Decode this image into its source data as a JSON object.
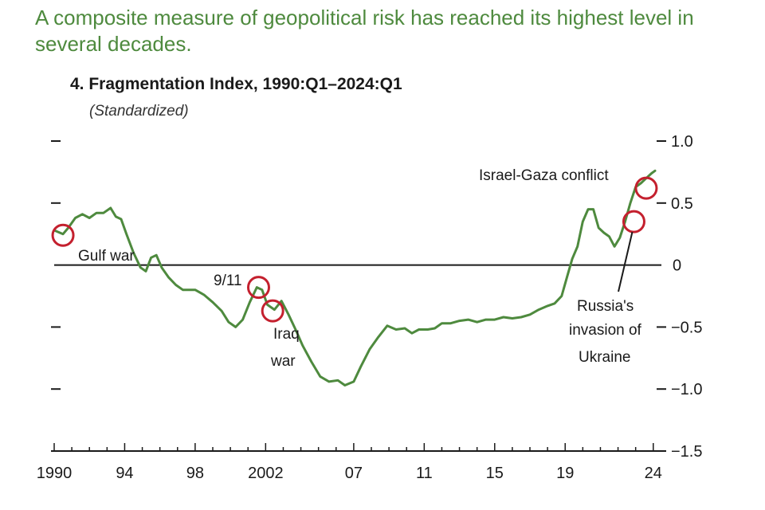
{
  "headline": "A composite measure of geopolitical risk has reached its highest level in several decades.",
  "chart_data": {
    "type": "line",
    "title": "4. Fragmentation Index, 1990:Q1–2024:Q1",
    "subtitle": "(Standardized)",
    "ylim": [
      -1.5,
      1.0
    ],
    "xlim": [
      1990,
      2024.1
    ],
    "y_ticks": [
      1.0,
      0.5,
      0,
      -0.5,
      -1.0,
      -1.5
    ],
    "y_tick_labels": [
      "1.0",
      "0.5",
      "0",
      "−0.5",
      "−1.0",
      "−1.5"
    ],
    "x_ticks": [
      1990,
      1994,
      1998,
      2002,
      2007,
      2011,
      2015,
      2019,
      2024
    ],
    "x_tick_labels": [
      "1990",
      "94",
      "98",
      "2002",
      "07",
      "11",
      "15",
      "19",
      "24"
    ],
    "zero_line": true,
    "line_color": "#4e8a3e",
    "highlight_color": "#c4202e",
    "series": [
      {
        "x": [
          1990.0,
          1990.5,
          1990.8,
          1991.2,
          1991.6,
          1992.0,
          1992.4,
          1992.8,
          1993.2,
          1993.5,
          1993.8,
          1994.1,
          1994.5,
          1994.9,
          1995.2,
          1995.5,
          1995.8,
          1996.1,
          1996.5,
          1996.9,
          1997.3,
          1997.7,
          1998.0,
          1998.5,
          1999.0,
          1999.5,
          1999.9,
          2000.3,
          2000.7,
          2001.1,
          2001.5,
          2001.8,
          2002.1,
          2002.5,
          2002.9,
          2003.3,
          2003.7,
          2004.1,
          2004.6,
          2005.1,
          2005.6,
          2006.1,
          2006.5,
          2007.0,
          2007.4,
          2007.9,
          2008.4,
          2008.9,
          2009.4,
          2009.9,
          2010.3,
          2010.7,
          2011.2,
          2011.6,
          2012.0,
          2012.5,
          2013.0,
          2013.5,
          2014.0,
          2014.5,
          2015.0,
          2015.5,
          2016.0,
          2016.5,
          2017.0,
          2017.5,
          2018.0,
          2018.4,
          2018.8,
          2019.1,
          2019.4,
          2019.7,
          2020.0,
          2020.3,
          2020.6,
          2020.9,
          2021.2,
          2021.5,
          2021.8,
          2022.1,
          2022.4,
          2022.7,
          2023.0,
          2023.3,
          2023.6,
          2023.9,
          2024.1
        ],
        "y": [
          0.28,
          0.25,
          0.3,
          0.38,
          0.41,
          0.38,
          0.42,
          0.42,
          0.46,
          0.39,
          0.37,
          0.25,
          0.1,
          -0.02,
          -0.05,
          0.06,
          0.08,
          -0.02,
          -0.1,
          -0.16,
          -0.2,
          -0.2,
          -0.2,
          -0.24,
          -0.3,
          -0.37,
          -0.46,
          -0.5,
          -0.44,
          -0.3,
          -0.18,
          -0.2,
          -0.32,
          -0.36,
          -0.29,
          -0.4,
          -0.52,
          -0.65,
          -0.78,
          -0.9,
          -0.94,
          -0.93,
          -0.97,
          -0.94,
          -0.82,
          -0.68,
          -0.58,
          -0.49,
          -0.52,
          -0.51,
          -0.55,
          -0.52,
          -0.52,
          -0.51,
          -0.47,
          -0.47,
          -0.45,
          -0.44,
          -0.46,
          -0.44,
          -0.44,
          -0.42,
          -0.43,
          -0.42,
          -0.4,
          -0.36,
          -0.33,
          -0.31,
          -0.25,
          -0.1,
          0.05,
          0.15,
          0.35,
          0.45,
          0.45,
          0.3,
          0.26,
          0.23,
          0.15,
          0.22,
          0.35,
          0.5,
          0.63,
          0.66,
          0.7,
          0.74,
          0.76
        ]
      }
    ],
    "annotations": [
      {
        "label": "Gulf war",
        "x": 1990.5,
        "y": 0.24
      },
      {
        "label": "9/11",
        "x": 2001.6,
        "y": -0.18
      },
      {
        "label": "Iraq war",
        "x": 2002.4,
        "y": -0.37
      },
      {
        "label": "Russia's invasion of Ukraine",
        "x": 2022.9,
        "y": 0.35
      },
      {
        "label": "Israel-Gaza conflict",
        "x": 2023.6,
        "y": 0.62
      }
    ]
  }
}
